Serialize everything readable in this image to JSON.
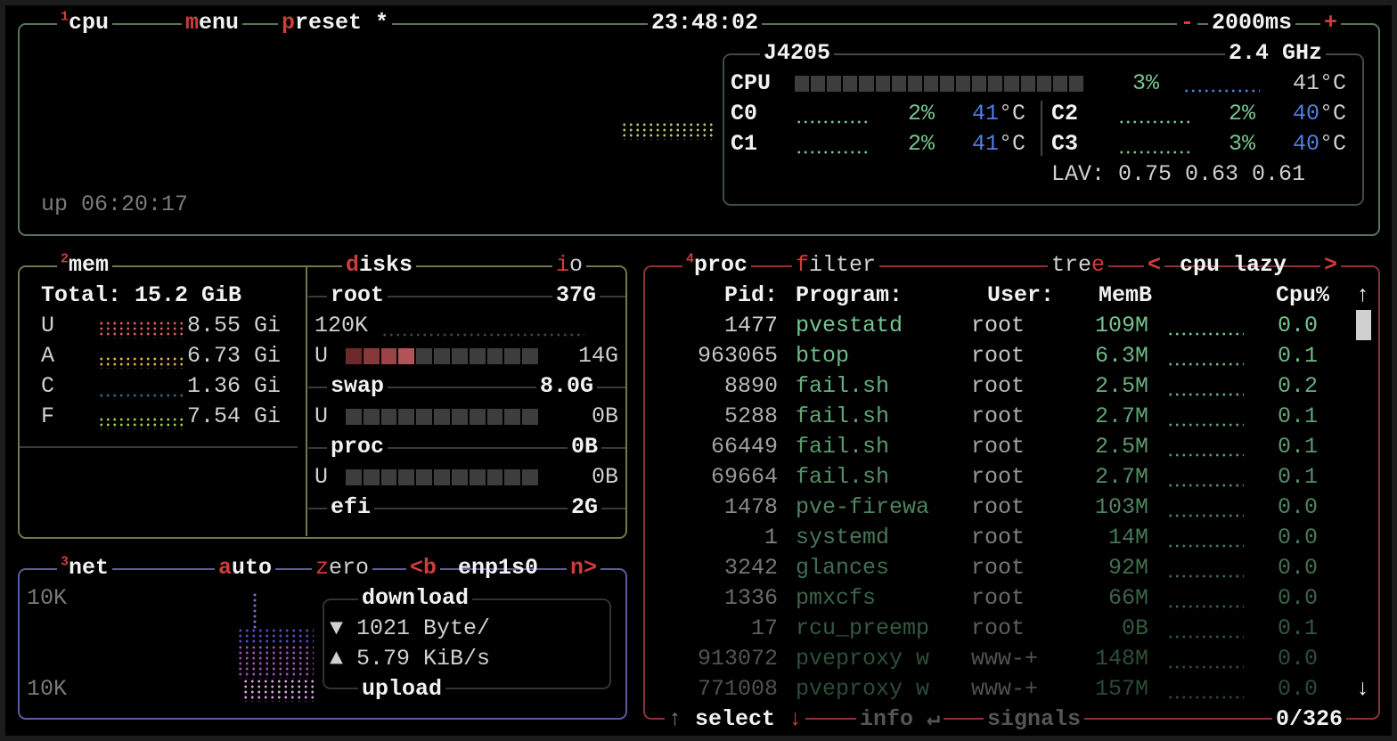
{
  "colors": {
    "cpu_border": "#56765a",
    "mem_border": "#76764a",
    "net_border": "#5c5ca4",
    "proc_border": "#8a3434",
    "accent": "#d03c3c",
    "value_green": "#74c48e",
    "temp_blue": "#4f7fe0"
  },
  "cpu": {
    "num": "1",
    "title": "cpu",
    "menu_hot": "m",
    "menu_rest": "enu",
    "preset_hot": "p",
    "preset_rest": "reset",
    "preset_mark": "*",
    "clock": "23:48:02",
    "minus": "-",
    "interval": "2000ms",
    "plus": "+",
    "uptime": "up 06:20:17",
    "model": "J4205",
    "freq": "2.4 GHz",
    "total": {
      "label": "CPU",
      "percent": "3%",
      "percent_value": 3,
      "temp": "41°C"
    },
    "cores": [
      {
        "label": "C0",
        "percent": "2%",
        "temp_num": "41",
        "temp_unit": "°C"
      },
      {
        "label": "C1",
        "percent": "2%",
        "temp_num": "41",
        "temp_unit": "°C"
      },
      {
        "label": "C2",
        "percent": "2%",
        "temp_num": "40",
        "temp_unit": "°C"
      },
      {
        "label": "C3",
        "percent": "3%",
        "temp_num": "40",
        "temp_unit": "°C"
      }
    ],
    "lav": "LAV: 0.75 0.63 0.61"
  },
  "mem": {
    "num": "2",
    "title": "mem",
    "total": "Total: 15.2 GiB",
    "rows": [
      {
        "label": "U",
        "value": "8.55 Gi"
      },
      {
        "label": "A",
        "value": "6.73 Gi"
      },
      {
        "label": "C",
        "value": "1.36 Gi"
      },
      {
        "label": "F",
        "value": "7.54 Gi"
      }
    ]
  },
  "disks": {
    "title_hot": "d",
    "title_rest": "isks",
    "io_hot": "i",
    "io_rest": "o",
    "root": {
      "name": "root",
      "size": "37G",
      "io": "120K",
      "used_label": "U",
      "used": "14G",
      "used_fraction": 0.36
    },
    "swap": {
      "name": "swap",
      "size": "8.0G",
      "used_label": "U",
      "used": "0B",
      "used_fraction": 0
    },
    "proc": {
      "name": "proc",
      "size": "0B",
      "used_label": "U",
      "used": "0B",
      "used_fraction": 0
    },
    "efi": {
      "name": "efi",
      "size": "2G"
    }
  },
  "net": {
    "num": "3",
    "title": "net",
    "auto_hot": "a",
    "auto_rest": "uto",
    "zero_hot": "z",
    "zero_rest": "ero",
    "prev": "<b",
    "iface": "enp1s0",
    "next": "n>",
    "scale_top": "10K",
    "scale_bottom": "10K",
    "download_label": "download",
    "download_icon": "▼",
    "download": "1021 Byte/",
    "upload_icon": "▲",
    "upload": "5.79 KiB/s",
    "upload_label": "upload"
  },
  "proc": {
    "num": "4",
    "title": "proc",
    "filter_hot": "f",
    "filter_rest": "ilter",
    "tree_rest": "tre",
    "tree_hot": "e",
    "sort_prev": "<",
    "sort": "cpu lazy",
    "sort_next": ">",
    "headers": {
      "pid": "Pid:",
      "program": "Program:",
      "user": "User:",
      "mem": "MemB",
      "cpu": "Cpu%"
    },
    "scroll_up": "↑",
    "scroll_down": "↓",
    "rows": [
      {
        "pid": "1477",
        "program": "pvestatd",
        "user": "root",
        "mem": "109M",
        "cpu": "0.0"
      },
      {
        "pid": "963065",
        "program": "btop",
        "user": "root",
        "mem": "6.3M",
        "cpu": "0.1"
      },
      {
        "pid": "8890",
        "program": "fail.sh",
        "user": "root",
        "mem": "2.5M",
        "cpu": "0.2"
      },
      {
        "pid": "5288",
        "program": "fail.sh",
        "user": "root",
        "mem": "2.7M",
        "cpu": "0.1"
      },
      {
        "pid": "66449",
        "program": "fail.sh",
        "user": "root",
        "mem": "2.5M",
        "cpu": "0.1"
      },
      {
        "pid": "69664",
        "program": "fail.sh",
        "user": "root",
        "mem": "2.7M",
        "cpu": "0.1"
      },
      {
        "pid": "1478",
        "program": "pve-firewa",
        "user": "root",
        "mem": "103M",
        "cpu": "0.0"
      },
      {
        "pid": "1",
        "program": "systemd",
        "user": "root",
        "mem": "14M",
        "cpu": "0.0"
      },
      {
        "pid": "3242",
        "program": "glances",
        "user": "root",
        "mem": "92M",
        "cpu": "0.0"
      },
      {
        "pid": "1336",
        "program": "pmxcfs",
        "user": "root",
        "mem": "66M",
        "cpu": "0.0"
      },
      {
        "pid": "17",
        "program": "rcu_preemp",
        "user": "root",
        "mem": "0B",
        "cpu": "0.1"
      },
      {
        "pid": "913072",
        "program": "pveproxy w",
        "user": "www-+",
        "mem": "148M",
        "cpu": "0.0"
      },
      {
        "pid": "771008",
        "program": "pveproxy w",
        "user": "www-+",
        "mem": "157M",
        "cpu": "0.0"
      }
    ],
    "footer": {
      "up": "↑",
      "select": "select",
      "down": "↓",
      "info": "info",
      "enter": "↵",
      "signals": "signals",
      "count": "0/326"
    }
  }
}
